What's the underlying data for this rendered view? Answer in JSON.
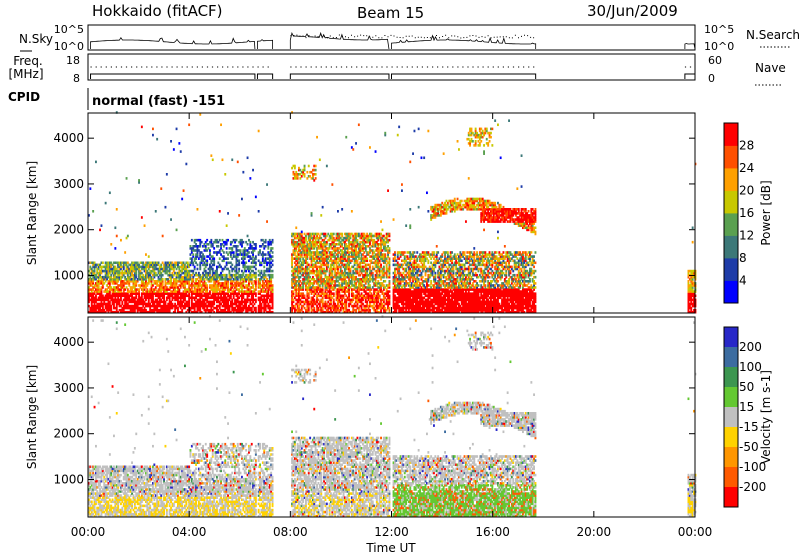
{
  "header": {
    "left_title": "Hokkaido (fitACF)",
    "center_title": "Beam 15",
    "right_title": "30/Jun/2009"
  },
  "strip_labels": {
    "nsky": "N.Sky",
    "nsky_ticks": [
      "10^5",
      "10^0"
    ],
    "nsearch": "N.Search",
    "nsearch_ticks": [
      "10^5",
      "10^0"
    ],
    "freq": "Freq.",
    "freq_unit": "[MHz]",
    "freq_ticks": [
      "18",
      "8"
    ],
    "nave": "Nave",
    "nave_ticks": [
      "60",
      "0"
    ],
    "cpid": "CPID",
    "cpid_value": "normal (fast) -151"
  },
  "chart_data": [
    {
      "type": "heatmap",
      "name": "power",
      "ylabel": "Slant Range [km]",
      "xlabel": "",
      "yticks": [
        1000,
        2000,
        3000,
        4000
      ],
      "xticks": [
        "00:00",
        "04:00",
        "08:00",
        "12:00",
        "16:00",
        "20:00",
        "00:00"
      ],
      "colorbar_label": "Power [dB]",
      "colorbar_ticks": [
        "4",
        "8",
        "12",
        "16",
        "20",
        "24",
        "28"
      ],
      "colors": [
        "#0000ff",
        "#1e3ca8",
        "#3c7878",
        "#5aa050",
        "#c8c800",
        "#ffa000",
        "#ff5000",
        "#ff0000"
      ]
    },
    {
      "type": "heatmap",
      "name": "velocity",
      "ylabel": "Slant Range [km]",
      "xlabel": "Time UT",
      "yticks": [
        1000,
        2000,
        3000,
        4000
      ],
      "xticks": [
        "00:00",
        "04:00",
        "08:00",
        "12:00",
        "16:00",
        "20:00",
        "00:00"
      ],
      "colorbar_label": "Velocity [m s-1]",
      "colorbar_ticks": [
        "200",
        "100",
        "50",
        "15",
        "-15",
        "-50",
        "-100",
        "-200"
      ],
      "colors": [
        "#2828c8",
        "#3c6ca0",
        "#3c9650",
        "#64c832",
        "#c0c0c0",
        "#ffd200",
        "#ff9600",
        "#ff5a00",
        "#ff0000"
      ]
    }
  ]
}
